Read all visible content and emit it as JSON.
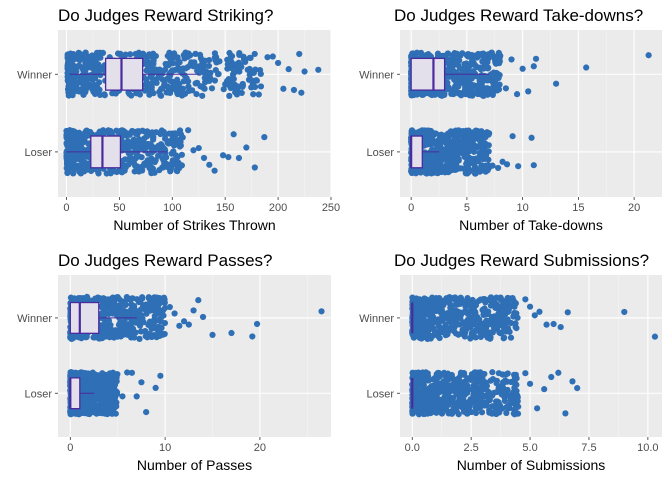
{
  "chart_data": [
    {
      "type": "box_jitter",
      "title": "Do Judges Reward Striking?",
      "xlabel": "Number of Strikes Thrown",
      "ylabel": "",
      "categories": [
        "Loser",
        "Winner"
      ],
      "xlim": [
        -8,
        250
      ],
      "xticks": [
        0,
        50,
        100,
        150,
        200,
        250
      ],
      "xtick_labels": [
        "0",
        "50",
        "100",
        "150",
        "200",
        "250"
      ],
      "grid": true,
      "series": [
        {
          "category": "Winner",
          "box": {
            "min": 3,
            "q1": 37,
            "median": 52,
            "q3": 72,
            "max": 125
          },
          "jitter_range": [
            1,
            185
          ],
          "outliers": [
            190,
            195,
            200,
            205,
            210,
            215,
            220,
            222,
            225,
            238
          ]
        },
        {
          "category": "Loser",
          "box": {
            "min": 0,
            "q1": 23,
            "median": 34,
            "q3": 51,
            "max": 95
          },
          "jitter_range": [
            0,
            110
          ],
          "outliers": [
            115,
            120,
            125,
            130,
            135,
            140,
            148,
            153,
            158,
            163,
            170,
            178,
            187
          ]
        }
      ],
      "colors": {
        "points": "#2f6fb5",
        "box_line": "#4b2a9e",
        "box_fill": "#e3e0ec",
        "panel": "#ebebeb"
      }
    },
    {
      "type": "box_jitter",
      "title": "Do Judges Reward Take-downs?",
      "xlabel": "Number of Take-downs",
      "ylabel": "",
      "categories": [
        "Loser",
        "Winner"
      ],
      "xlim": [
        -1,
        22.5
      ],
      "xticks": [
        0,
        5,
        10,
        15,
        20
      ],
      "xtick_labels": [
        "0",
        "5",
        "10",
        "15",
        "20"
      ],
      "grid": true,
      "series": [
        {
          "category": "Winner",
          "box": {
            "min": 0,
            "q1": 0,
            "median": 2,
            "q3": 3,
            "max": 7
          },
          "jitter_range": [
            0,
            8
          ],
          "outliers": [
            8.5,
            9,
            9.5,
            10,
            10.5,
            11,
            11.2,
            13,
            15.7,
            21.3
          ]
        },
        {
          "category": "Loser",
          "box": {
            "min": 0,
            "q1": 0,
            "median": 0,
            "q3": 1,
            "max": 2.5
          },
          "jitter_range": [
            0,
            7
          ],
          "outliers": [
            7.3,
            7.8,
            8.2,
            8.6,
            9.1,
            9.6,
            10.8,
            11
          ]
        }
      ],
      "colors": {
        "points": "#2f6fb5",
        "box_line": "#4b2a9e",
        "box_fill": "#e3e0ec",
        "panel": "#ebebeb"
      }
    },
    {
      "type": "box_jitter",
      "title": "Do Judges Reward Passes?",
      "xlabel": "Number of Passes",
      "ylabel": "",
      "categories": [
        "Loser",
        "Winner"
      ],
      "xlim": [
        -1.3,
        27.5
      ],
      "xticks": [
        0,
        10,
        20
      ],
      "xtick_labels": [
        "0",
        "10",
        "20"
      ],
      "grid": true,
      "series": [
        {
          "category": "Winner",
          "box": {
            "min": 0,
            "q1": 0,
            "median": 1,
            "q3": 3,
            "max": 7
          },
          "jitter_range": [
            0,
            10
          ],
          "outliers": [
            10.5,
            11,
            11.5,
            12,
            12.5,
            13,
            13.5,
            14,
            15,
            17,
            19.2,
            19.7,
            26.5
          ]
        },
        {
          "category": "Loser",
          "box": {
            "min": 0,
            "q1": 0,
            "median": 0,
            "q3": 1,
            "max": 2.5
          },
          "jitter_range": [
            0,
            5
          ],
          "outliers": [
            5.5,
            6,
            6.5,
            7,
            7.5,
            8,
            9,
            9.5
          ]
        }
      ],
      "colors": {
        "points": "#2f6fb5",
        "box_line": "#4b2a9e",
        "box_fill": "#e3e0ec",
        "panel": "#ebebeb"
      }
    },
    {
      "type": "box_jitter",
      "title": "Do Judges Reward Submissions?",
      "xlabel": "Number of Submissions",
      "ylabel": "",
      "categories": [
        "Loser",
        "Winner"
      ],
      "xlim": [
        -0.52,
        10.6
      ],
      "xticks": [
        0,
        2.5,
        5,
        7.5,
        10
      ],
      "xtick_labels": [
        "0.0",
        "2.5",
        "5.0",
        "7.5",
        "10.0"
      ],
      "grid": true,
      "series": [
        {
          "category": "Winner",
          "box": {
            "min": 0,
            "q1": 0,
            "median": 0,
            "q3": 0,
            "max": 0
          },
          "jitter_range": [
            0,
            4.5
          ],
          "outliers": [
            4.8,
            5.0,
            5.2,
            5.4,
            5.7,
            6.0,
            6.3,
            6.6,
            9.0,
            10.3
          ]
        },
        {
          "category": "Loser",
          "box": {
            "min": 0,
            "q1": 0,
            "median": 0,
            "q3": 0,
            "max": 0
          },
          "jitter_range": [
            0,
            4.5
          ],
          "outliers": [
            4.8,
            5.0,
            5.3,
            5.6,
            5.9,
            6.2,
            6.5,
            6.8,
            7.0
          ]
        }
      ],
      "colors": {
        "points": "#2f6fb5",
        "box_line": "#4b2a9e",
        "box_fill": "#e3e0ec",
        "panel": "#ebebeb"
      }
    }
  ]
}
